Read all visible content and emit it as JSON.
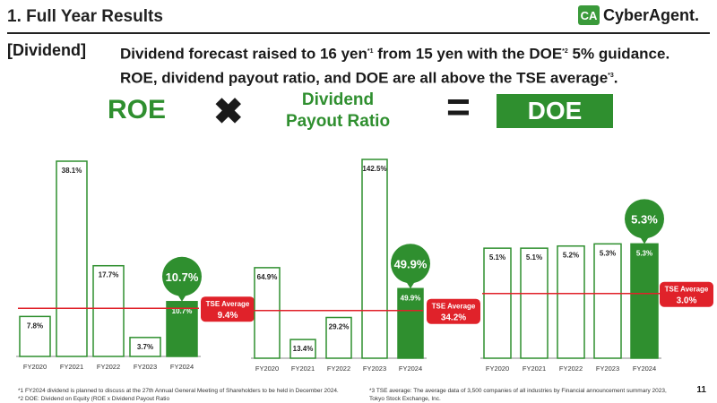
{
  "header": {
    "title": "1. Full Year Results",
    "logo_mark": "CA",
    "logo_text": "CyberAgent."
  },
  "headline": {
    "tag": "[Dividend]",
    "line1_a": "Dividend forecast raised to 16 yen",
    "sup1": "*1",
    "line1_b": " from 15 yen with the DOE",
    "sup2": "*2",
    "line1_c": " 5% guidance.",
    "line2_a": "ROE, dividend payout ratio, and DOE are all above the TSE average",
    "sup3": "*3",
    "line2_b": "."
  },
  "labels": {
    "roe": "ROE",
    "times": "✖",
    "payout_line1": "Dividend",
    "payout_line2": "Payout Ratio",
    "equals": "=",
    "doe": "DOE"
  },
  "colors": {
    "accent": "#2f8f2f",
    "tse_line": "#e0222a",
    "bar_outline": "#2f8f2f"
  },
  "chart_data": [
    {
      "type": "bar",
      "name": "ROE",
      "categories": [
        "FY2020",
        "FY2021",
        "FY2022",
        "FY2023",
        "FY2024"
      ],
      "values": [
        7.8,
        38.1,
        17.7,
        3.7,
        10.7
      ],
      "value_labels": [
        "7.8%",
        "38.1%",
        "17.7%",
        "3.7%",
        "10.7%"
      ],
      "highlight_label": "10.7%",
      "tse_average": 9.4,
      "tse_label": "TSE Average",
      "tse_value_label": "9.4%",
      "ylim": [
        0,
        38.1
      ]
    },
    {
      "type": "bar",
      "name": "Dividend Payout Ratio",
      "categories": [
        "FY2020",
        "FY2021",
        "FY2022",
        "FY2023",
        "FY2024"
      ],
      "values": [
        64.9,
        13.4,
        29.2,
        142.5,
        49.9
      ],
      "value_labels": [
        "64.9%",
        "13.4%",
        "29.2%",
        "142.5%",
        "49.9%"
      ],
      "highlight_label": "49.9%",
      "tse_average": 34.2,
      "tse_label": "TSE Average",
      "tse_value_label": "34.2%",
      "ylim": [
        0,
        142.5
      ]
    },
    {
      "type": "bar",
      "name": "DOE",
      "categories": [
        "FY2020",
        "FY2021",
        "FY2022",
        "FY2023",
        "FY2024"
      ],
      "values": [
        5.1,
        5.1,
        5.2,
        5.3,
        5.3
      ],
      "value_labels": [
        "5.1%",
        "5.1%",
        "5.2%",
        "5.3%",
        "5.3%"
      ],
      "highlight_label": "5.3%",
      "tse_average": 3.0,
      "tse_label": "TSE Average",
      "tse_value_label": "3.0%",
      "ylim": [
        0,
        8.8
      ]
    }
  ],
  "footnotes": {
    "note1": "*1 FY2024 dividend is planned to discuss at the 27th Annual General Meeting of Shareholders to be held in December 2024.",
    "note2": "*2 DOE: Dividend on Equity (ROE x Dividend Payout Ratio",
    "note3": "*3 TSE average: The average data of 3,500 companies of all industries by Financial announcement summary 2023,",
    "note3b": "Tokyo Stock Exchange, Inc."
  },
  "page_number": "11"
}
